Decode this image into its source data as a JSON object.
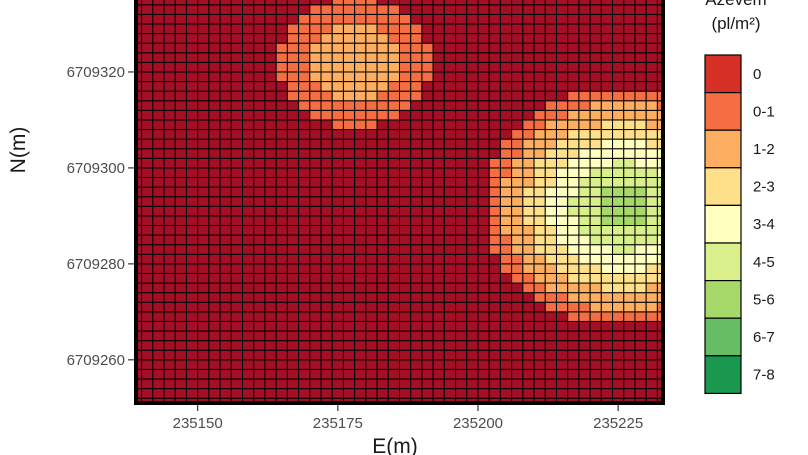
{
  "chart_data": {
    "type": "heatmap",
    "title": "",
    "xlabel": "E(m)",
    "ylabel": "N(m)",
    "xlim": [
      235139,
      235233
    ],
    "ylim": [
      6709251,
      6709335
    ],
    "x_ticks": [
      235150,
      235175,
      235200,
      235225
    ],
    "y_ticks": [
      6709260,
      6709280,
      6709300,
      6709320
    ],
    "x_tick_labels": [
      "235150",
      "235175",
      "235200",
      "235225"
    ],
    "y_tick_labels": [
      "6709260",
      "6709280",
      "6709300",
      "6709320"
    ],
    "grid": false,
    "legend": {
      "position": "right",
      "title_lines": [
        "Azevém",
        "(pl/m²)"
      ],
      "classes": [
        "0",
        "0-1",
        "1-2",
        "2-3",
        "3-4",
        "4-5",
        "5-6",
        "6-7",
        "7-8"
      ],
      "colors": [
        "#d73027",
        "#f46d43",
        "#fdae61",
        "#fee08b",
        "#ffffbf",
        "#d9ef8b",
        "#a6d96a",
        "#66bd63",
        "#1a9850"
      ]
    },
    "base_color": "#a50f26",
    "patches": [
      {
        "center": [
          235178,
          6709322
        ],
        "peak_density": 2.0
      },
      {
        "center": [
          235226,
          6709292
        ],
        "peak_density": 6.2
      }
    ]
  }
}
